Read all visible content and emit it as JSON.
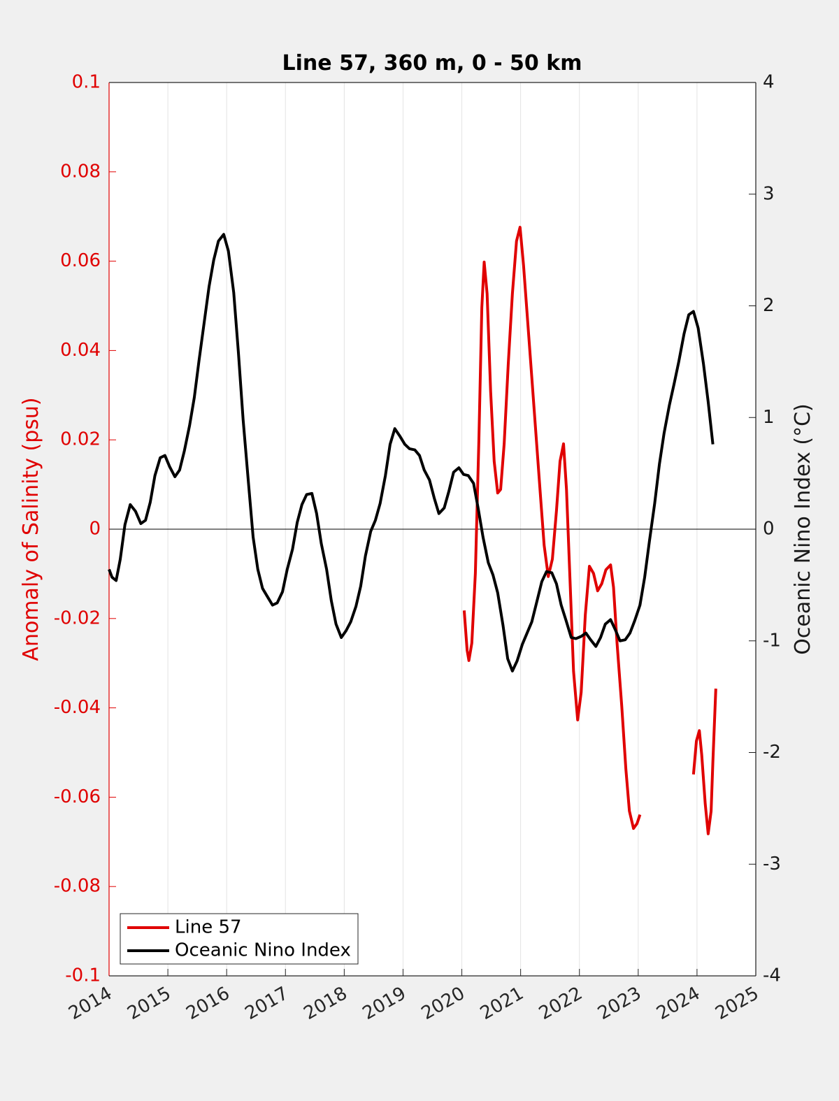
{
  "chart_data": {
    "type": "line",
    "title": "Line 57, 360 m, 0 - 50 km",
    "ylabel": "Anomaly of Salinity (psu)",
    "y2label": "Oceanic Nino Index (°C)",
    "xlim": [
      2014,
      2025
    ],
    "xticks": [
      2014,
      2015,
      2016,
      2017,
      2018,
      2019,
      2020,
      2021,
      2022,
      2023,
      2024,
      2025
    ],
    "ylim": [
      -0.1,
      0.1
    ],
    "yticks": [
      -0.1,
      -0.08,
      -0.06,
      -0.04,
      -0.02,
      0,
      0.02,
      0.04,
      0.06,
      0.08,
      0.1
    ],
    "y2lim": [
      -4,
      4
    ],
    "y2ticks": [
      -4,
      -3,
      -2,
      -1,
      0,
      1,
      2,
      3,
      4
    ],
    "ycolor": "#e00000",
    "y2color": "#1a1a1a",
    "grid": "x",
    "hline": 0,
    "legend": "lower left",
    "series": [
      {
        "name": "Line 57",
        "color": "#e00000",
        "axis": "y",
        "x": [
          2020.04,
          2020.09,
          2020.12,
          2020.17,
          2020.23,
          2020.29,
          2020.34,
          2020.38,
          2020.43,
          2020.49,
          2020.55,
          2020.61,
          2020.66,
          2020.72,
          2020.79,
          2020.86,
          2020.93,
          2020.99,
          2021.05,
          2021.12,
          2021.19,
          2021.26,
          2021.34,
          2021.4,
          2021.47,
          2021.54,
          2021.61,
          2021.67,
          2021.73,
          2021.78,
          2021.84,
          2021.9,
          2021.97,
          2022.03,
          2022.1,
          2022.17,
          2022.24,
          2022.31,
          2022.38,
          2022.45,
          2022.53,
          2022.58,
          2022.64,
          2022.72,
          2022.79,
          2022.85,
          2022.92,
          2022.98,
          2023.03,
          null,
          2023.94,
          2023.99,
          2024.04,
          2024.08,
          2024.14,
          2024.19,
          2024.24,
          2024.27,
          2024.32
        ],
        "values": [
          -0.0182,
          -0.0271,
          -0.0294,
          -0.0255,
          -0.0099,
          0.0199,
          0.0496,
          0.0598,
          0.0527,
          0.0308,
          0.0152,
          0.0081,
          0.0089,
          0.0191,
          0.0371,
          0.0527,
          0.0645,
          0.0676,
          0.059,
          0.0465,
          0.034,
          0.0214,
          0.007,
          -0.0036,
          -0.0106,
          -0.0067,
          0.0042,
          0.0152,
          0.0191,
          0.0089,
          -0.0114,
          -0.0318,
          -0.0427,
          -0.0365,
          -0.0192,
          -0.0083,
          -0.0099,
          -0.0138,
          -0.0122,
          -0.0091,
          -0.008,
          -0.013,
          -0.0255,
          -0.0396,
          -0.0537,
          -0.0631,
          -0.067,
          -0.0659,
          -0.0639,
          null,
          -0.0549,
          -0.0474,
          -0.0451,
          -0.0505,
          -0.0615,
          -0.0682,
          -0.0631,
          -0.0521,
          -0.0357
        ]
      },
      {
        "name": "Oceanic Nino Index",
        "color": "#000000",
        "axis": "y2",
        "x": [
          2014.0,
          2014.05,
          2014.12,
          2014.19,
          2014.27,
          2014.36,
          2014.45,
          2014.54,
          2014.62,
          2014.7,
          2014.78,
          2014.87,
          2014.95,
          2015.03,
          2015.12,
          2015.2,
          2015.28,
          2015.37,
          2015.45,
          2015.53,
          2015.62,
          2015.7,
          2015.78,
          2015.86,
          2015.95,
          2016.03,
          2016.12,
          2016.2,
          2016.28,
          2016.37,
          2016.45,
          2016.53,
          2016.61,
          2016.7,
          2016.78,
          2016.86,
          2016.95,
          2017.03,
          2017.12,
          2017.2,
          2017.28,
          2017.36,
          2017.45,
          2017.53,
          2017.61,
          2017.7,
          2017.78,
          2017.86,
          2017.95,
          2018.03,
          2018.11,
          2018.2,
          2018.28,
          2018.36,
          2018.45,
          2018.53,
          2018.61,
          2018.7,
          2018.78,
          2018.86,
          2018.95,
          2019.03,
          2019.11,
          2019.2,
          2019.28,
          2019.36,
          2019.45,
          2019.53,
          2019.61,
          2019.7,
          2019.78,
          2019.86,
          2019.95,
          2020.03,
          2020.11,
          2020.2,
          2020.28,
          2020.36,
          2020.45,
          2020.53,
          2020.61,
          2020.7,
          2020.78,
          2020.86,
          2020.94,
          2021.03,
          2021.11,
          2021.19,
          2021.28,
          2021.36,
          2021.44,
          2021.53,
          2021.61,
          2021.69,
          2021.78,
          2021.86,
          2021.94,
          2022.03,
          2022.11,
          2022.19,
          2022.28,
          2022.36,
          2022.44,
          2022.53,
          2022.61,
          2022.69,
          2022.78,
          2022.86,
          2022.94,
          2023.03,
          2023.11,
          2023.19,
          2023.28,
          2023.36,
          2023.44,
          2023.53,
          2023.61,
          2023.69,
          2023.78,
          2023.86,
          2023.94,
          2024.02,
          2024.11,
          2024.19,
          2024.27
        ],
        "values": [
          -0.36,
          -0.43,
          -0.46,
          -0.27,
          0.04,
          0.22,
          0.16,
          0.05,
          0.08,
          0.24,
          0.48,
          0.64,
          0.66,
          0.56,
          0.47,
          0.53,
          0.7,
          0.93,
          1.18,
          1.51,
          1.86,
          2.17,
          2.41,
          2.58,
          2.64,
          2.49,
          2.12,
          1.58,
          0.98,
          0.42,
          -0.07,
          -0.36,
          -0.53,
          -0.61,
          -0.68,
          -0.66,
          -0.56,
          -0.36,
          -0.18,
          0.06,
          0.22,
          0.31,
          0.32,
          0.14,
          -0.13,
          -0.36,
          -0.64,
          -0.85,
          -0.97,
          -0.91,
          -0.83,
          -0.69,
          -0.51,
          -0.24,
          -0.02,
          0.08,
          0.23,
          0.48,
          0.76,
          0.9,
          0.83,
          0.76,
          0.72,
          0.71,
          0.66,
          0.53,
          0.44,
          0.28,
          0.14,
          0.19,
          0.34,
          0.51,
          0.55,
          0.49,
          0.48,
          0.41,
          0.18,
          -0.07,
          -0.3,
          -0.41,
          -0.57,
          -0.86,
          -1.16,
          -1.27,
          -1.18,
          -1.03,
          -0.93,
          -0.83,
          -0.64,
          -0.47,
          -0.38,
          -0.39,
          -0.49,
          -0.68,
          -0.83,
          -0.97,
          -0.98,
          -0.96,
          -0.93,
          -0.99,
          -1.05,
          -0.97,
          -0.85,
          -0.81,
          -0.9,
          -1.0,
          -0.99,
          -0.93,
          -0.82,
          -0.68,
          -0.43,
          -0.11,
          0.23,
          0.58,
          0.86,
          1.11,
          1.3,
          1.5,
          1.75,
          1.92,
          1.95,
          1.8,
          1.48,
          1.14,
          0.76
        ]
      }
    ]
  }
}
